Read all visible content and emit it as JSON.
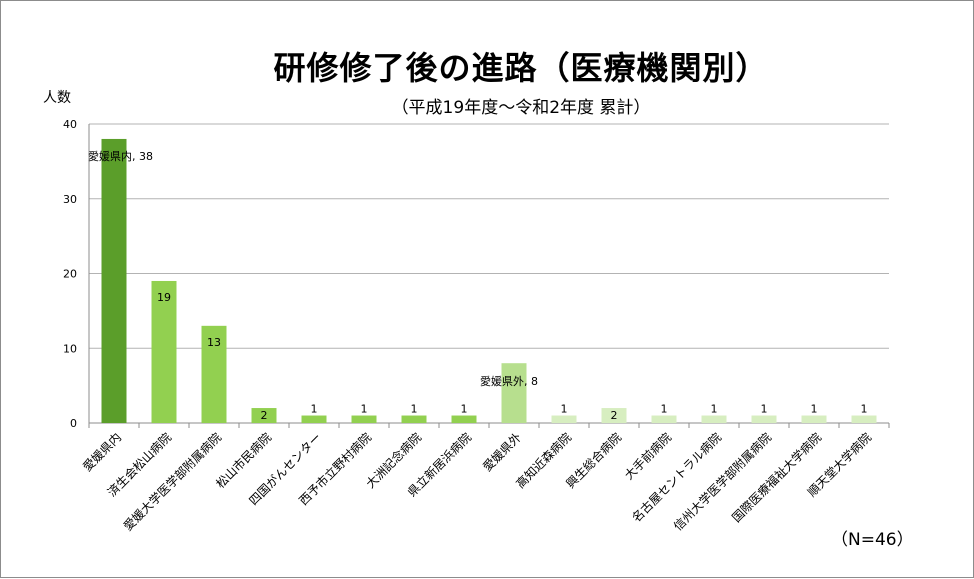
{
  "chart_data": {
    "type": "bar",
    "title": "研修修了後の進路（医療機関別）",
    "subtitle": "（平成19年度～令和2年度 累計）",
    "ylabel": "人数",
    "xlabel": "",
    "ylim": [
      0,
      40
    ],
    "yticks": [
      0,
      10,
      20,
      30,
      40
    ],
    "grid": true,
    "note": "（N=46）",
    "categories": [
      "愛媛県内",
      "済生会松山病院",
      "愛媛大学医学部附属病院",
      "松山市民病院",
      "四国がんセンター",
      "西予市立野村病院",
      "大洲記念病院",
      "県立新居浜病院",
      "愛媛県外",
      "高知近森病院",
      "興生総合病院",
      "大手前病院",
      "名古屋セントラル病院",
      "信州大学医学部附属病院",
      "国際医療福祉大学病院",
      "順天堂大学病院"
    ],
    "values": [
      38,
      19,
      13,
      2,
      1,
      1,
      1,
      1,
      8,
      1,
      2,
      1,
      1,
      1,
      1,
      1
    ],
    "data_labels": [
      "愛媛県内, 38",
      "19",
      "13",
      "2",
      "1",
      "1",
      "1",
      "1",
      "愛媛県外, 8",
      "1",
      "2",
      "1",
      "1",
      "1",
      "1",
      "1"
    ],
    "colors": {
      "total_inside": "#5b9e2a",
      "inside": "#92d050",
      "total_outside": "#b7df8e",
      "outside": "#d7eec0",
      "grid": "#b3b3b3",
      "axis": "#8c8c8c"
    },
    "bar_colors": [
      "total_inside",
      "inside",
      "inside",
      "inside",
      "inside",
      "inside",
      "inside",
      "inside",
      "total_outside",
      "outside",
      "outside",
      "outside",
      "outside",
      "outside",
      "outside",
      "outside"
    ]
  }
}
